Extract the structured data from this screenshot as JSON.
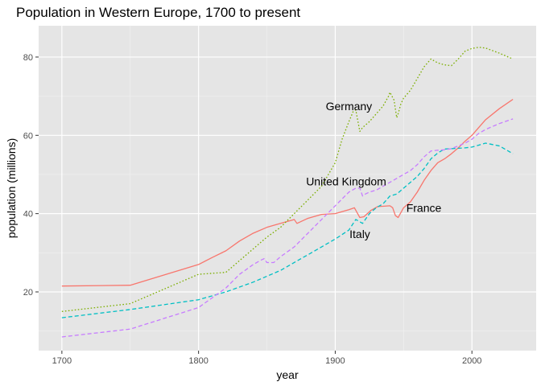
{
  "chart_data": {
    "type": "line",
    "title": "Population in Western Europe, 1700 to present",
    "xlabel": "year",
    "ylabel": "population (millions)",
    "xlim": [
      1683,
      2047
    ],
    "ylim": [
      5,
      88
    ],
    "xticks": [
      1700,
      1800,
      1900,
      2000
    ],
    "yticks": [
      20,
      40,
      60,
      80
    ],
    "grid": true,
    "legend": "none",
    "background": "#E5E5E5",
    "series": [
      {
        "name": "France",
        "color": "#F8766D",
        "dash": "solid",
        "label_at": [
          1952,
          41.5
        ],
        "x": [
          1700,
          1750,
          1800,
          1810,
          1820,
          1830,
          1840,
          1850,
          1860,
          1870,
          1872,
          1880,
          1890,
          1900,
          1910,
          1914,
          1918,
          1921,
          1926,
          1931,
          1936,
          1940,
          1942,
          1944,
          1946,
          1950,
          1955,
          1960,
          1965,
          1970,
          1975,
          1980,
          1985,
          1990,
          1995,
          2000,
          2005,
          2010,
          2020,
          2030
        ],
        "y": [
          21.5,
          21.7,
          27.0,
          28.8,
          30.5,
          33.0,
          35.0,
          36.5,
          37.5,
          38.5,
          37.5,
          38.8,
          39.8,
          40.0,
          41.0,
          41.5,
          39.0,
          39.2,
          40.8,
          41.8,
          41.9,
          42.0,
          41.5,
          39.5,
          39.0,
          41.5,
          43.0,
          45.5,
          48.5,
          51.0,
          53.0,
          54.0,
          55.3,
          56.8,
          58.5,
          60.0,
          62.0,
          64.0,
          66.8,
          69.2
        ]
      },
      {
        "name": "Germany",
        "color": "#7CAE00",
        "dash": "dotted",
        "label_at": [
          1910,
          67.5
        ],
        "x": [
          1700,
          1750,
          1800,
          1820,
          1830,
          1840,
          1850,
          1860,
          1870,
          1880,
          1890,
          1900,
          1905,
          1910,
          1913,
          1915,
          1918,
          1920,
          1925,
          1930,
          1935,
          1939,
          1940,
          1943,
          1945,
          1946,
          1948,
          1950,
          1955,
          1960,
          1965,
          1970,
          1975,
          1980,
          1985,
          1990,
          1995,
          2000,
          2005,
          2010,
          2020,
          2030
        ],
        "y": [
          15.0,
          17.0,
          24.5,
          25.0,
          28.0,
          31.0,
          34.0,
          36.5,
          40.0,
          43.5,
          47.0,
          53.0,
          59.0,
          63.5,
          66.0,
          66.5,
          61.0,
          62.0,
          63.5,
          65.5,
          67.5,
          70.0,
          71.0,
          69.0,
          64.5,
          65.5,
          68.0,
          69.5,
          71.5,
          74.5,
          77.5,
          79.5,
          78.5,
          78.0,
          77.8,
          79.5,
          81.5,
          82.2,
          82.5,
          82.3,
          81.0,
          79.5
        ]
      },
      {
        "name": "Italy",
        "color": "#00BFC4",
        "dash": "dashed",
        "label_at": [
          1918,
          34.8
        ],
        "x": [
          1700,
          1750,
          1800,
          1820,
          1840,
          1860,
          1870,
          1880,
          1890,
          1900,
          1910,
          1915,
          1920,
          1925,
          1930,
          1935,
          1940,
          1945,
          1950,
          1955,
          1960,
          1965,
          1970,
          1975,
          1980,
          1985,
          1990,
          1995,
          2000,
          2005,
          2010,
          2020,
          2030
        ],
        "y": [
          13.4,
          15.5,
          18.0,
          20.0,
          22.5,
          25.5,
          27.5,
          29.5,
          31.5,
          33.5,
          35.8,
          38.5,
          37.5,
          40.0,
          41.5,
          42.5,
          44.5,
          45.0,
          46.5,
          48.0,
          49.5,
          51.5,
          54.0,
          55.5,
          56.5,
          56.6,
          56.7,
          56.8,
          57.0,
          57.5,
          58.0,
          57.3,
          55.3
        ]
      },
      {
        "name": "United Kingdom",
        "color": "#C77CFF",
        "dash": "dashed",
        "label_at": [
          1908,
          48.2
        ],
        "x": [
          1700,
          1750,
          1800,
          1810,
          1820,
          1830,
          1840,
          1845,
          1848,
          1850,
          1855,
          1860,
          1870,
          1880,
          1890,
          1900,
          1910,
          1915,
          1918,
          1920,
          1922,
          1925,
          1930,
          1935,
          1940,
          1945,
          1950,
          1955,
          1960,
          1965,
          1970,
          1975,
          1980,
          1985,
          1990,
          1995,
          2000,
          2005,
          2010,
          2020,
          2030
        ],
        "y": [
          8.5,
          10.5,
          16.0,
          18.5,
          21.0,
          24.5,
          27.0,
          28.0,
          28.5,
          27.5,
          27.5,
          29.0,
          31.5,
          35.0,
          38.5,
          42.0,
          45.5,
          46.5,
          46.5,
          44.5,
          45.0,
          45.5,
          46.0,
          47.0,
          48.0,
          49.0,
          50.0,
          51.0,
          52.5,
          54.5,
          56.0,
          56.2,
          56.3,
          56.6,
          57.3,
          58.0,
          59.0,
          60.5,
          61.5,
          63.0,
          64.2
        ]
      }
    ]
  }
}
